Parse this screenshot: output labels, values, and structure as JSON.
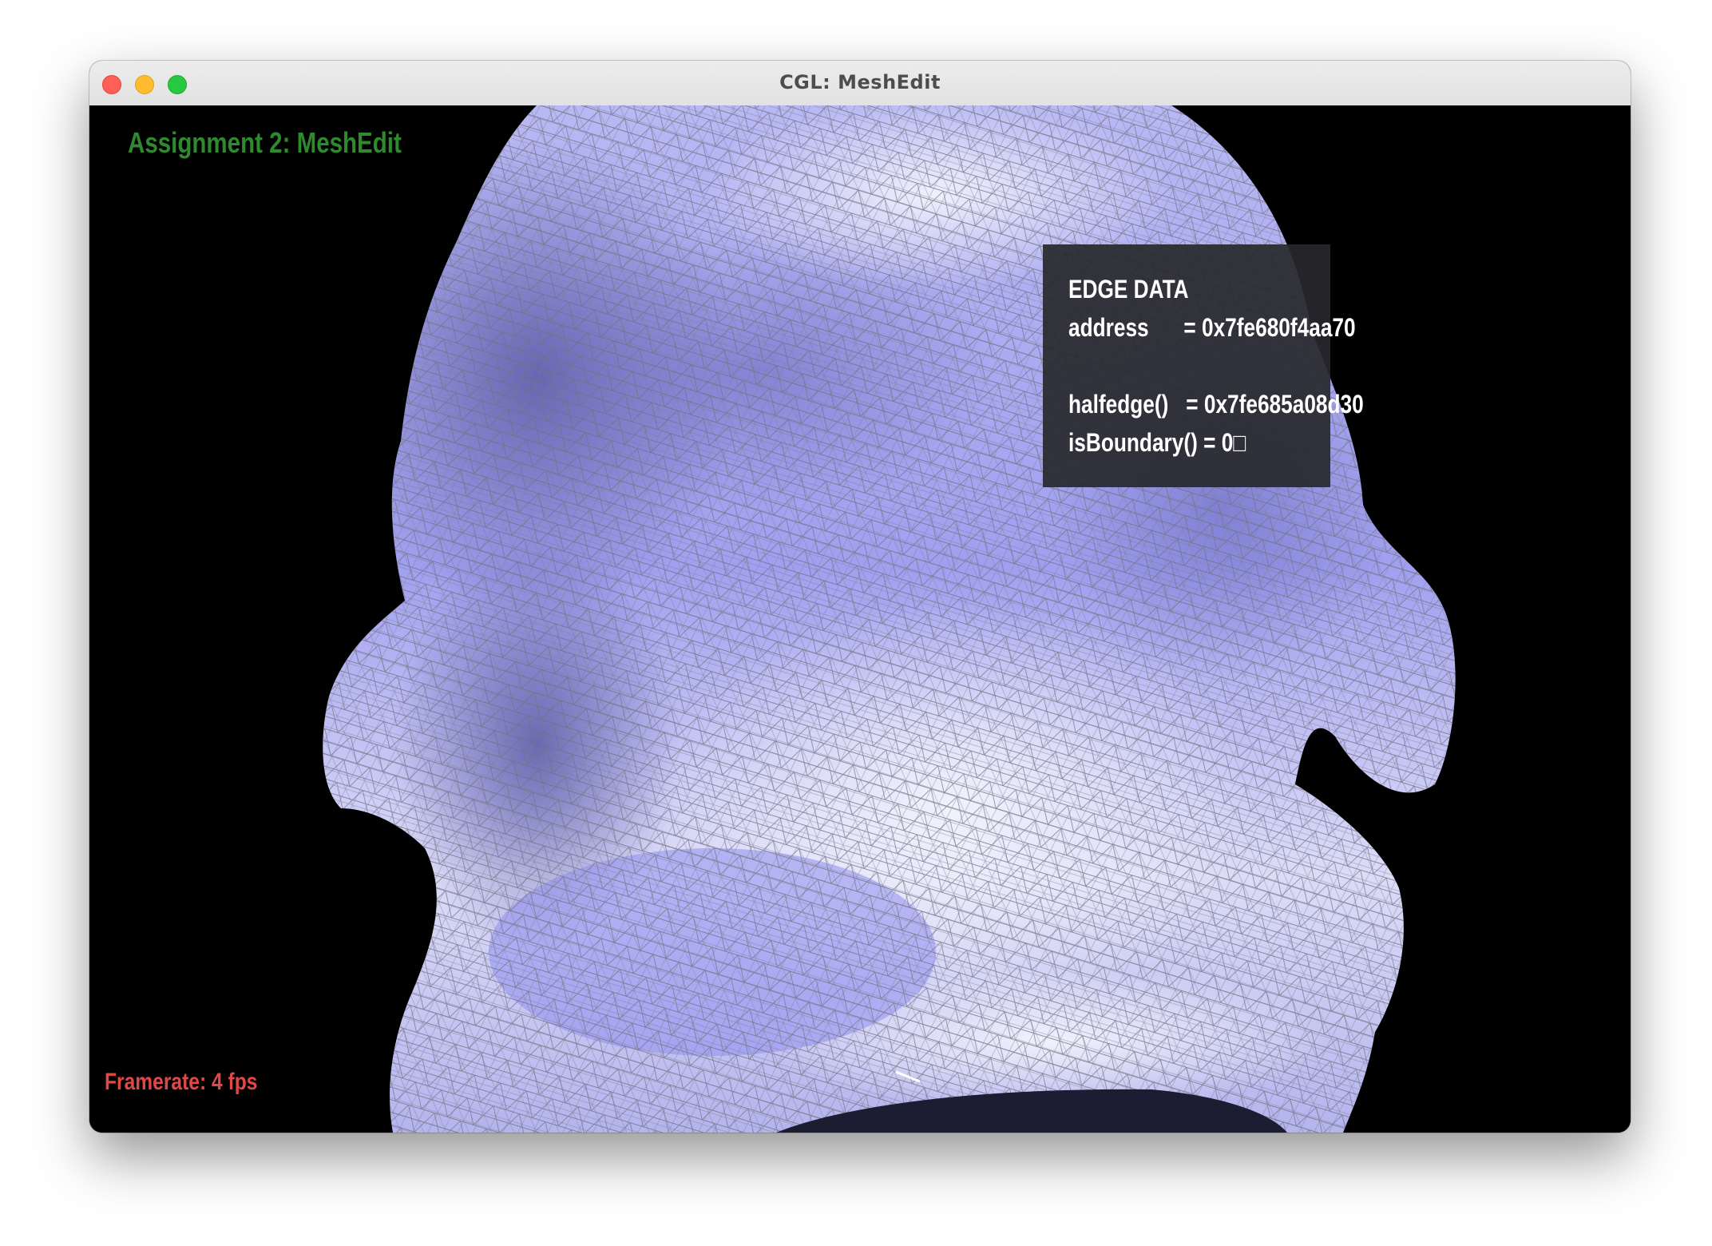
{
  "window": {
    "title": "CGL: MeshEdit"
  },
  "overlay": {
    "assignment_title": "Assignment 2: MeshEdit",
    "framerate": "Framerate: 4 fps"
  },
  "edge_data": {
    "heading": "EDGE DATA",
    "address_line": "address      = 0x7fe680f4aa70",
    "halfedge_line": "halfedge()   = 0x7fe685a08d30",
    "boundary_line": "isBoundary() = 0□"
  },
  "colors": {
    "mesh_fill": "#9a9af0",
    "mesh_highlight": "#ececfb",
    "wireframe": "#8a8a96",
    "background": "#000000",
    "title_green": "#2f8a2f",
    "framerate_red": "#e04848"
  }
}
